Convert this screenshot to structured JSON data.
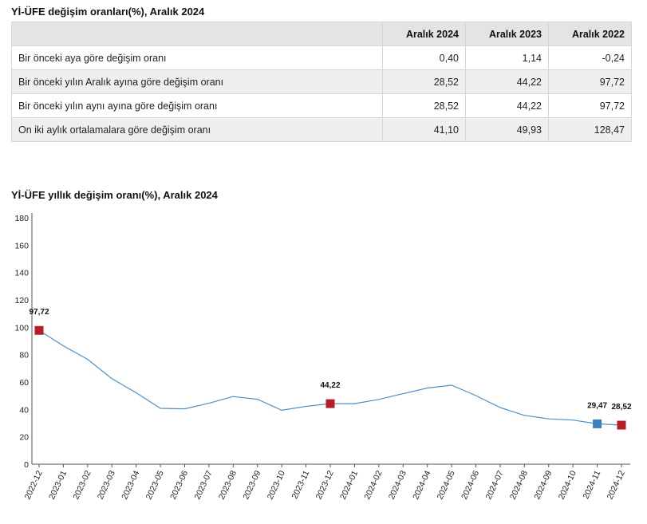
{
  "table": {
    "title": "Yİ-ÜFE değişim oranları(%), Aralık 2024",
    "headers": [
      "",
      "Aralık 2024",
      "Aralık 2023",
      "Aralık 2022"
    ],
    "rows": [
      {
        "label": "Bir önceki aya göre değişim oranı",
        "values": [
          "0,40",
          "1,14",
          "-0,24"
        ]
      },
      {
        "label": "Bir önceki yılın Aralık ayına göre değişim oranı",
        "values": [
          "28,52",
          "44,22",
          "97,72"
        ]
      },
      {
        "label": "Bir önceki yılın aynı ayına göre değişim oranı",
        "values": [
          "28,52",
          "44,22",
          "97,72"
        ]
      },
      {
        "label": "On iki aylık ortalamalara göre değişim oranı",
        "values": [
          "41,10",
          "49,93",
          "128,47"
        ]
      }
    ]
  },
  "chart_data": {
    "type": "line",
    "title": "Yİ-ÜFE yıllık değişim oranı(%), Aralık 2024",
    "xlabel": "",
    "ylabel": "",
    "ylim": [
      0,
      180
    ],
    "yticks": [
      0,
      20,
      40,
      60,
      80,
      100,
      120,
      140,
      160,
      180
    ],
    "categories": [
      "2022-12",
      "2023-01",
      "2023-02",
      "2023-03",
      "2023-04",
      "2023-05",
      "2023-06",
      "2023-07",
      "2023-08",
      "2023-09",
      "2023-10",
      "2023-11",
      "2023-12",
      "2024-01",
      "2024-02",
      "2024-03",
      "2024-04",
      "2024-05",
      "2024-06",
      "2024-07",
      "2024-08",
      "2024-09",
      "2024-10",
      "2024-11",
      "2024-12"
    ],
    "series": [
      {
        "values": [
          97.72,
          86.46,
          76.61,
          62.45,
          52.11,
          40.76,
          40.42,
          44.5,
          49.41,
          47.44,
          39.39,
          42.25,
          44.22,
          44.2,
          47.29,
          51.47,
          55.66,
          57.68,
          50.09,
          41.37,
          35.67,
          33.09,
          32.24,
          29.47,
          28.52
        ]
      }
    ],
    "markers": [
      {
        "index": 0,
        "label": "97,72",
        "color": "#b51e27",
        "shape": "square"
      },
      {
        "index": 12,
        "label": "44,22",
        "color": "#b51e27",
        "shape": "square"
      },
      {
        "index": 23,
        "label": "29,47",
        "color": "#3a7fc1",
        "shape": "square"
      },
      {
        "index": 24,
        "label": "28,52",
        "color": "#b51e27",
        "shape": "square"
      }
    ],
    "line_color": "#4a90c8",
    "axis_color": "#555555",
    "grid": false,
    "legend": "none"
  }
}
